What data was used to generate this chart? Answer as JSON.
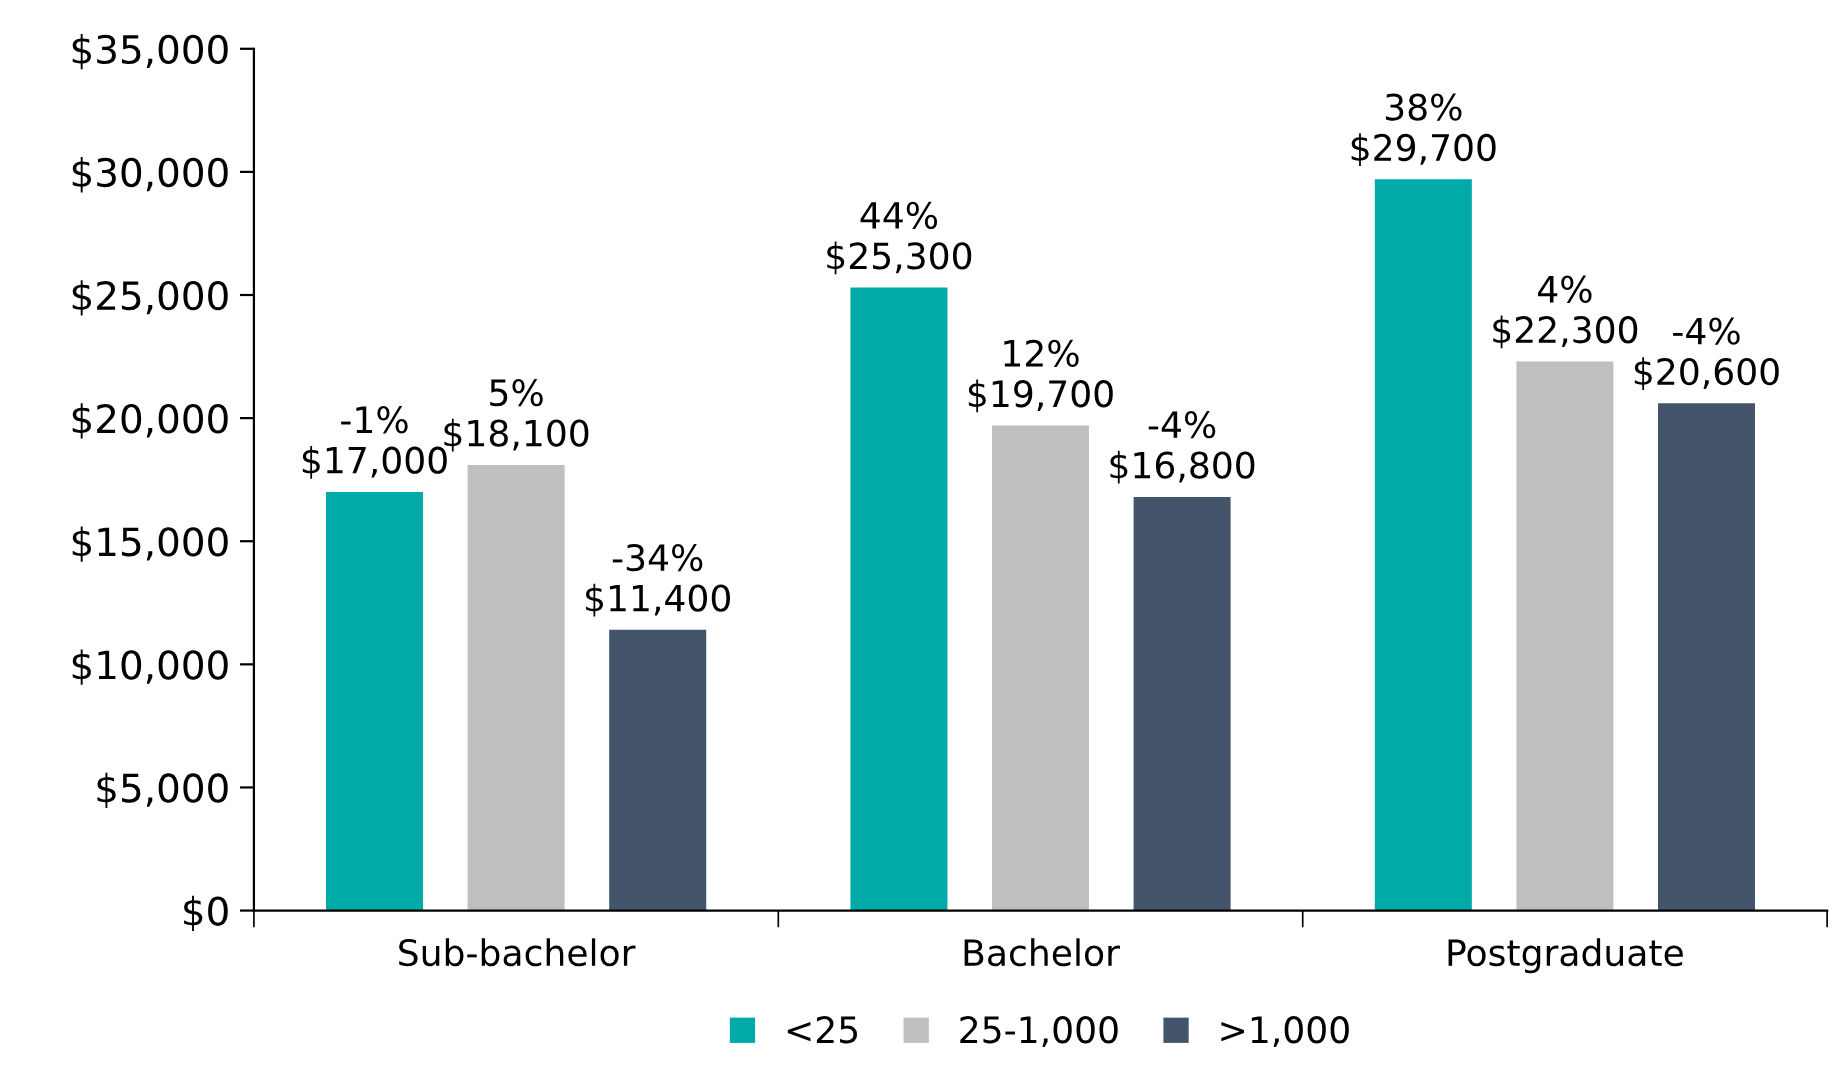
{
  "chart_data": {
    "type": "bar",
    "categories": [
      "Sub-bachelor",
      "Bachelor",
      "Postgraduate"
    ],
    "series": [
      {
        "name": "<25",
        "color": "#00aaa9",
        "values": [
          17000,
          25300,
          29700
        ],
        "value_labels": [
          "-1%\n$17,000",
          "44%\n$25,300",
          "38%\n$29,700"
        ]
      },
      {
        "name": "25-1,000",
        "color": "#bfbfbf",
        "values": [
          18100,
          19700,
          22300
        ],
        "value_labels": [
          "5%\n$18,100",
          "12%\n$19,700",
          "4%\n$22,300"
        ]
      },
      {
        "name": ">1,000",
        "color": "#44546a",
        "values": [
          11400,
          16800,
          20600
        ],
        "value_labels": [
          "-34%\n$11,400",
          "-4%\n$16,800",
          "-4%\n$20,600"
        ]
      }
    ],
    "ylim": [
      0,
      35000
    ],
    "yticks": [
      {
        "value": 0,
        "label": "$0"
      },
      {
        "value": 5000,
        "label": "$5,000"
      },
      {
        "value": 10000,
        "label": "$10,000"
      },
      {
        "value": 15000,
        "label": "$15,000"
      },
      {
        "value": 20000,
        "label": "$20,000"
      },
      {
        "value": 25000,
        "label": "$25,000"
      },
      {
        "value": 30000,
        "label": "$30,000"
      },
      {
        "value": 35000,
        "label": "$35,000"
      }
    ],
    "grid": false,
    "legend": "bottom"
  }
}
